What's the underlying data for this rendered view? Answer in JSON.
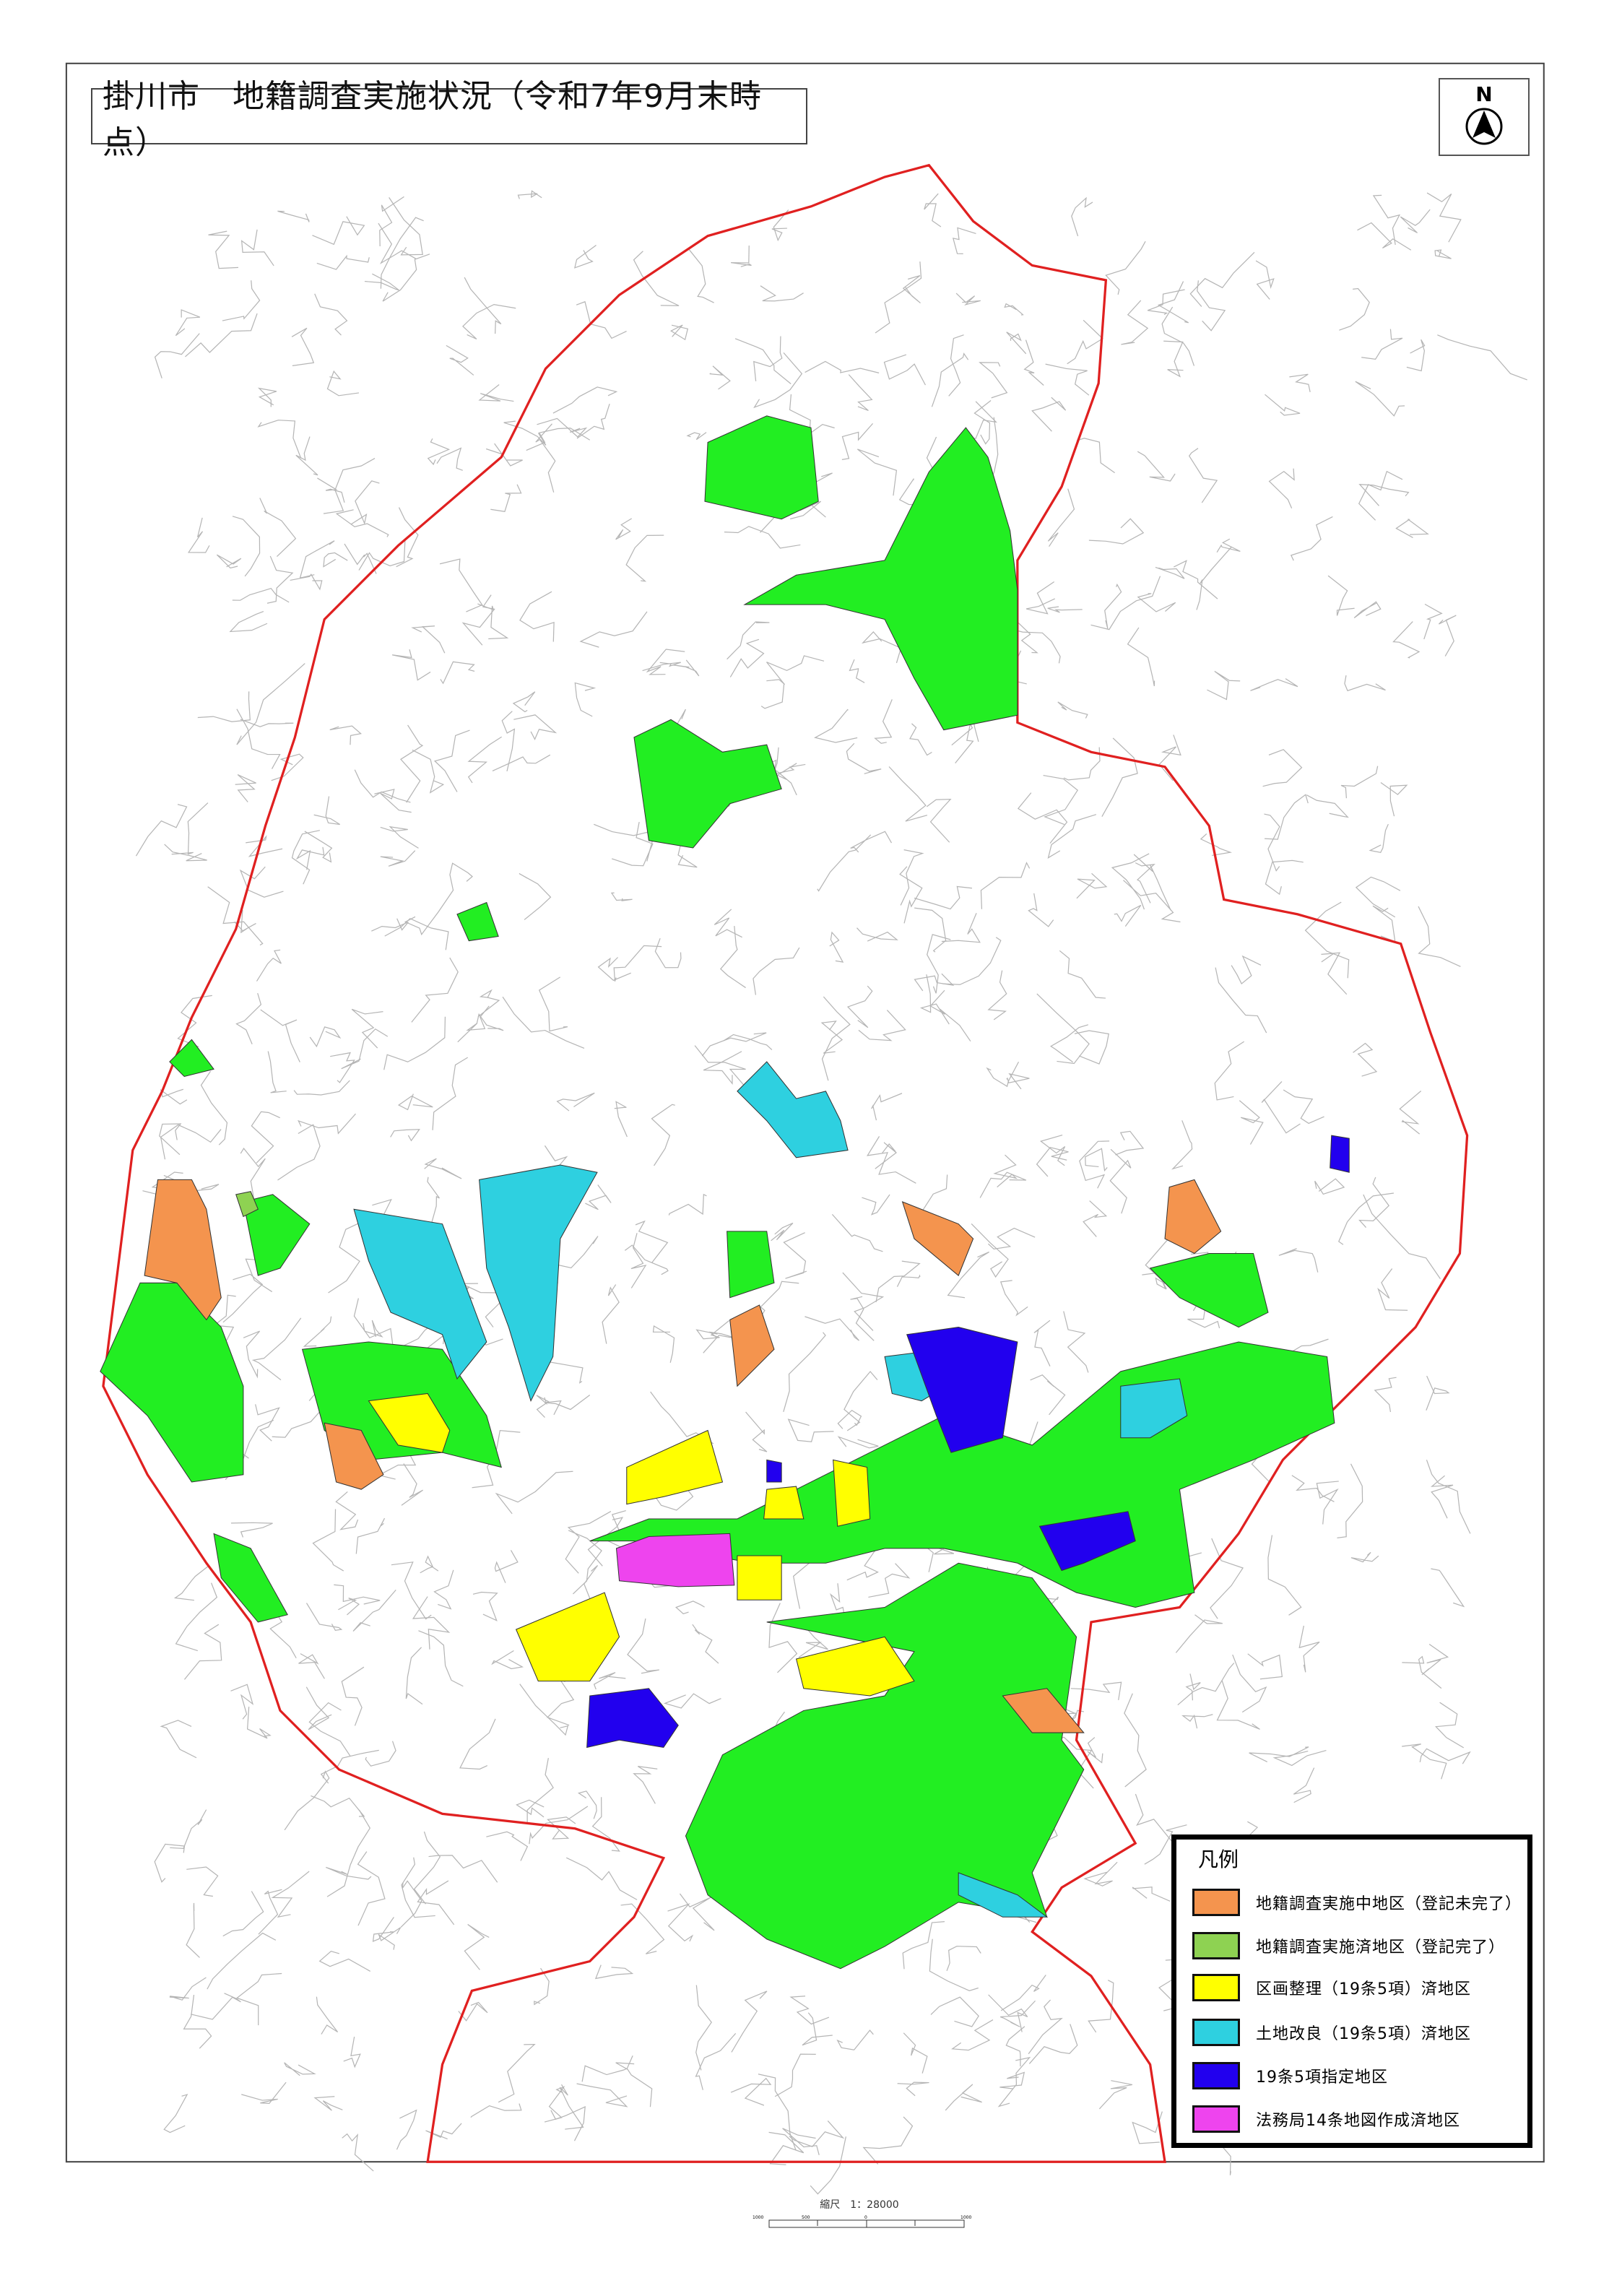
{
  "title": "掛川市　地籍調査実施状況（令和7年9月末時点）",
  "north_arrow": {
    "label": "N",
    "icon": "north-arrow-icon"
  },
  "legend": {
    "title": "凡例",
    "items": [
      {
        "label": "地籍調査実施中地区（登記未完了）",
        "color": "#f4944e"
      },
      {
        "label": "地籍調査実施済地区（登記完了）",
        "color": "#8ed252"
      },
      {
        "label": "区画整理（19条5項）済地区",
        "color": "#ffff00"
      },
      {
        "label": "土地改良（19条5項）済地区",
        "color": "#2ed0e0"
      },
      {
        "label": "19条5項指定地区",
        "color": "#2200ee"
      },
      {
        "label": "法務局14条地図作成済地区",
        "color": "#ee44ee"
      }
    ]
  },
  "map_colors": {
    "boundary": "#e02020",
    "completed_fill": "#22ee22",
    "roads": "#9a9a9a"
  },
  "scale": {
    "label": "縮尺　1：28000",
    "ticks": [
      "1000",
      "500",
      "0",
      "1000"
    ]
  }
}
